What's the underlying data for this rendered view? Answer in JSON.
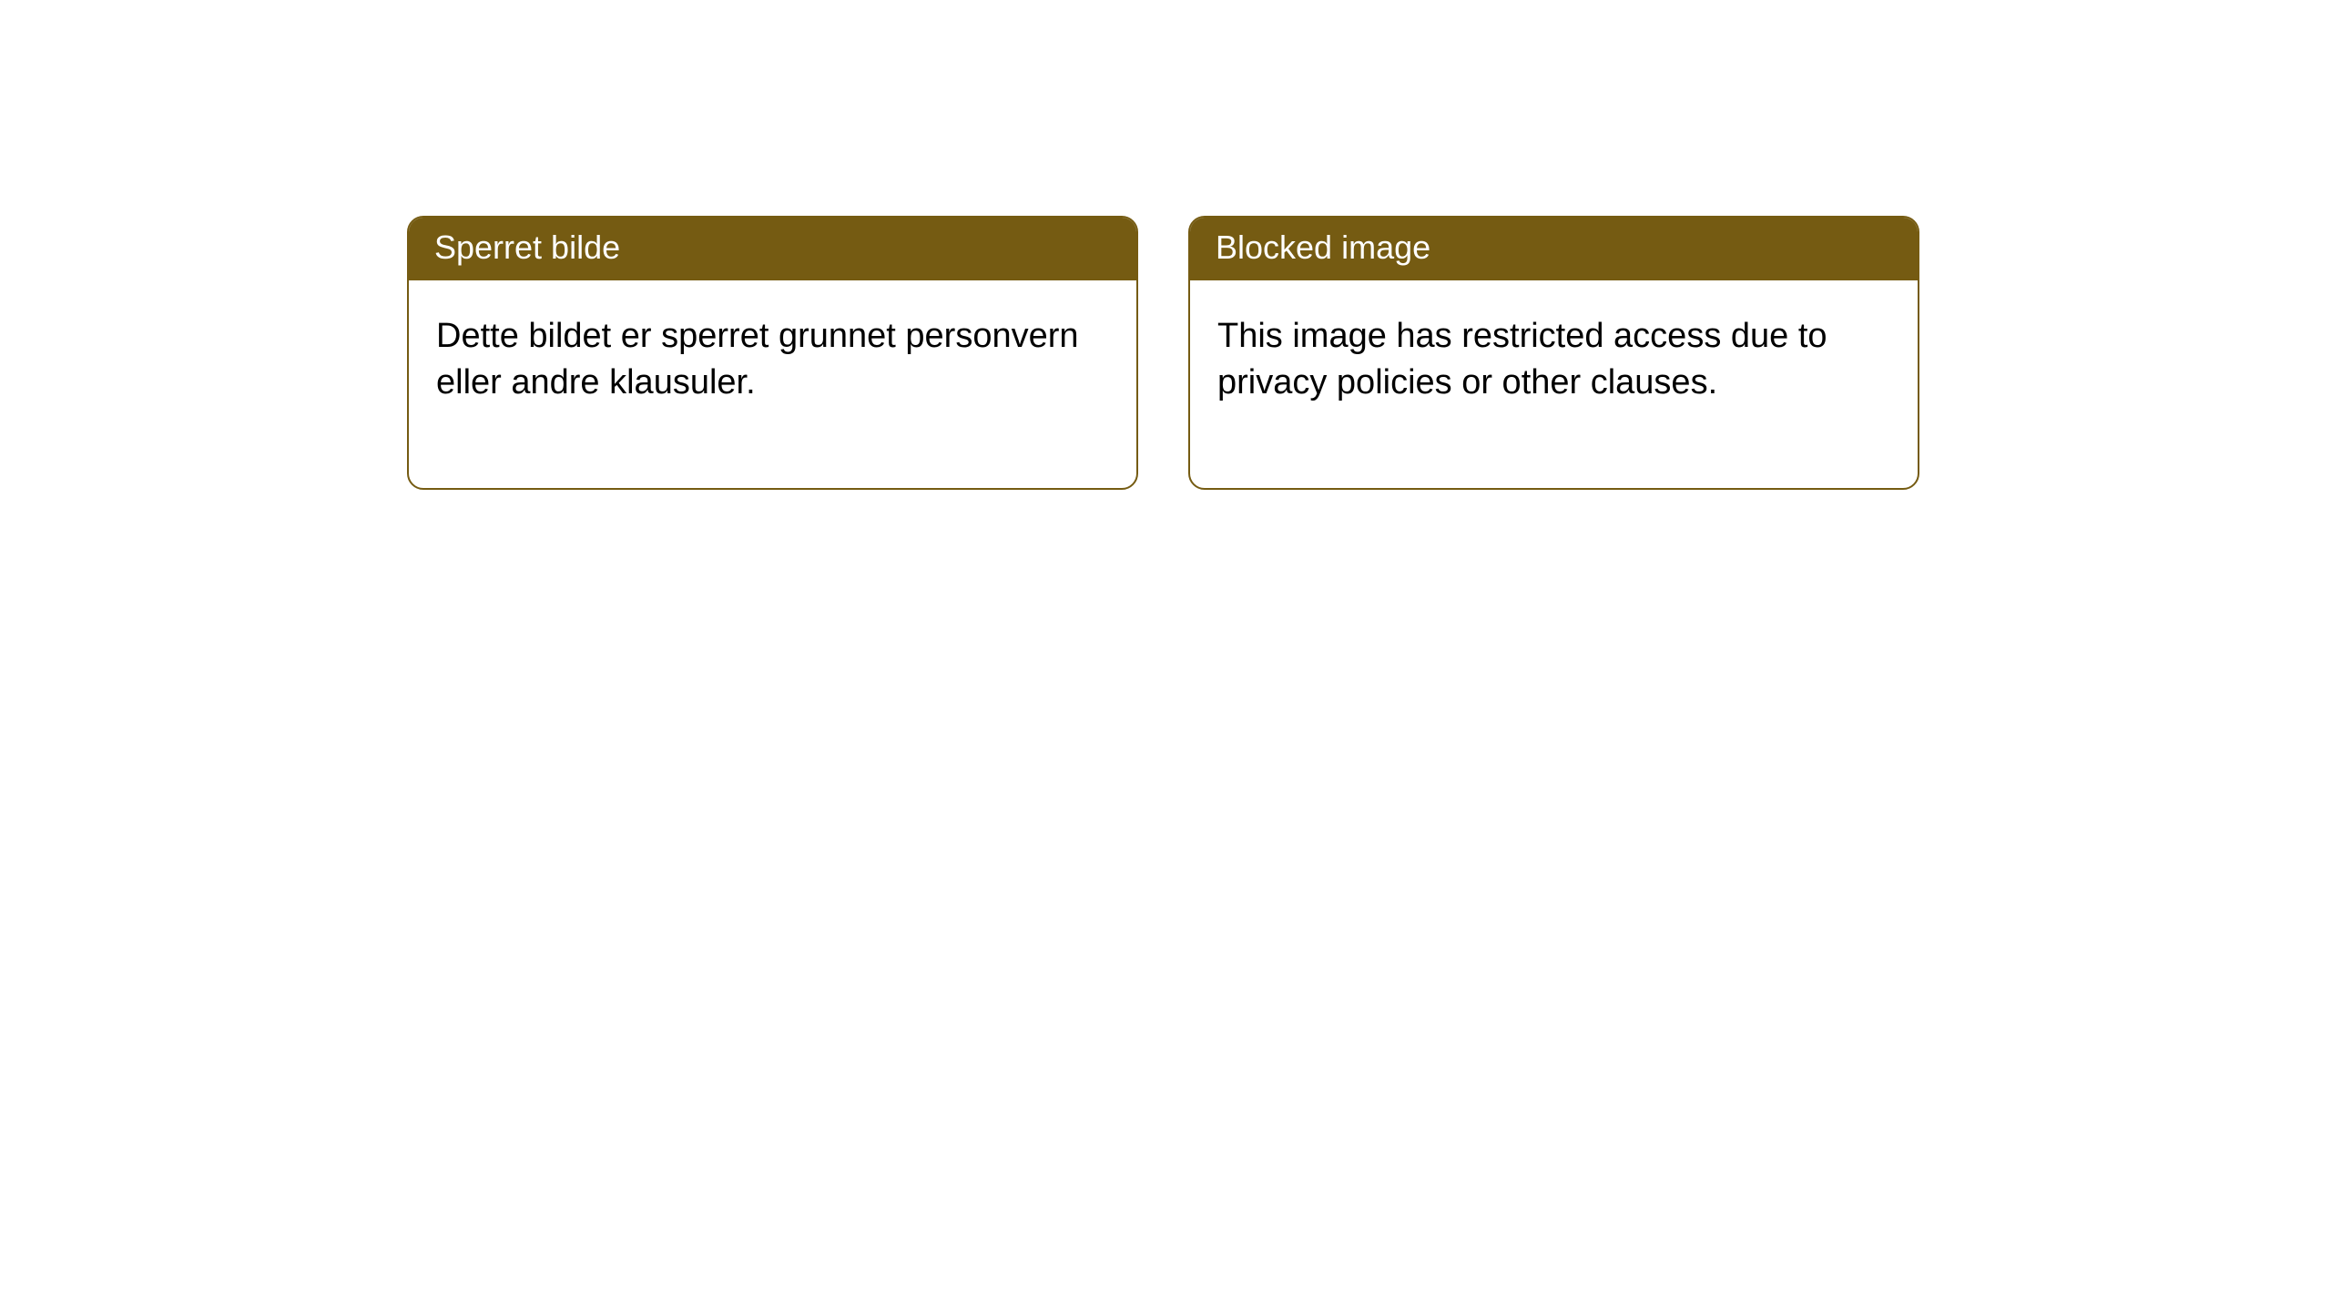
{
  "notices": [
    {
      "title": "Sperret bilde",
      "body": "Dette bildet er sperret grunnet personvern eller andre klausuler."
    },
    {
      "title": "Blocked image",
      "body": "This image has restricted access due to privacy policies or other clauses."
    }
  ],
  "styling": {
    "header_bg_color": "#755b12",
    "header_text_color": "#ffffff",
    "border_color": "#755b12",
    "body_text_color": "#000000",
    "background_color": "#ffffff",
    "card_border_radius": 18,
    "header_fontsize": 36,
    "body_fontsize": 38
  }
}
